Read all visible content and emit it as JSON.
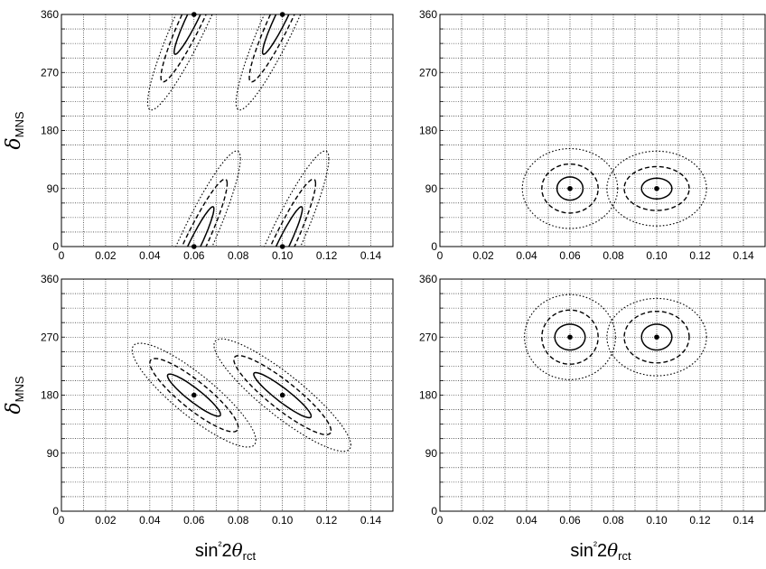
{
  "chart_data": [
    {
      "type": "contour",
      "panel": "top-left",
      "xlim": [
        0,
        0.15
      ],
      "ylim": [
        0,
        360
      ],
      "xticks": [
        "0",
        "0.02",
        "0.04",
        "0.06",
        "0.08",
        "0.10",
        "0.12",
        "0.14"
      ],
      "yticks": [
        "0",
        "90",
        "180",
        "270",
        "360"
      ],
      "ylabel": "δMNS",
      "xlabel": "",
      "grid": true,
      "true_points": [
        {
          "x": 0.06,
          "y": 360
        },
        {
          "x": 0.1,
          "y": 360
        },
        {
          "x": 0.06,
          "y": 0
        },
        {
          "x": 0.1,
          "y": 0
        }
      ],
      "contours": [
        {
          "cx": 0.06,
          "cy": 0,
          "rx": [
            0.009,
            0.015,
            0.021
          ],
          "ry": [
            20,
            38,
            58
          ],
          "slope": 6500
        },
        {
          "cx": 0.1,
          "cy": 0,
          "rx": [
            0.009,
            0.015,
            0.021
          ],
          "ry": [
            20,
            38,
            58
          ],
          "slope": 6500
        },
        {
          "cx": 0.06,
          "cy": 360,
          "rx": [
            0.009,
            0.015,
            0.021
          ],
          "ry": [
            20,
            38,
            58
          ],
          "slope": 6500
        },
        {
          "cx": 0.1,
          "cy": 360,
          "rx": [
            0.009,
            0.015,
            0.021
          ],
          "ry": [
            20,
            38,
            58
          ],
          "slope": 6500
        }
      ]
    },
    {
      "type": "contour",
      "panel": "top-right",
      "xlim": [
        0,
        0.15
      ],
      "ylim": [
        0,
        360
      ],
      "xticks": [
        "0",
        "0.02",
        "0.04",
        "0.06",
        "0.08",
        "0.10",
        "0.12",
        "0.14"
      ],
      "yticks": [
        "0",
        "90",
        "180",
        "270",
        "360"
      ],
      "ylabel": "",
      "xlabel": "",
      "grid": true,
      "true_points": [
        {
          "x": 0.06,
          "y": 90
        },
        {
          "x": 0.1,
          "y": 90
        }
      ],
      "contours": [
        {
          "cx": 0.06,
          "cy": 90,
          "rx": [
            0.006,
            0.013,
            0.022
          ],
          "ry": [
            18,
            38,
            62
          ],
          "slope": 0
        },
        {
          "cx": 0.1,
          "cy": 90,
          "rx": [
            0.007,
            0.015,
            0.023
          ],
          "ry": [
            16,
            34,
            58
          ],
          "slope": 0
        }
      ]
    },
    {
      "type": "contour",
      "panel": "bottom-left",
      "xlim": [
        0,
        0.15
      ],
      "ylim": [
        0,
        360
      ],
      "xticks": [
        "0",
        "0.02",
        "0.04",
        "0.06",
        "0.08",
        "0.10",
        "0.12",
        "0.14"
      ],
      "yticks": [
        "0",
        "90",
        "180",
        "270",
        "360"
      ],
      "ylabel": "δMNS",
      "xlabel": "sin²2θrct",
      "grid": true,
      "true_points": [
        {
          "x": 0.06,
          "y": 180
        },
        {
          "x": 0.1,
          "y": 180
        }
      ],
      "contours": [
        {
          "cx": 0.06,
          "cy": 180,
          "rx": [
            0.012,
            0.02,
            0.028
          ],
          "ry": [
            13,
            27,
            40
          ],
          "slope": -2500
        },
        {
          "cx": 0.1,
          "cy": 180,
          "rx": [
            0.013,
            0.022,
            0.031
          ],
          "ry": [
            13,
            27,
            40
          ],
          "slope": -2500
        }
      ]
    },
    {
      "type": "contour",
      "panel": "bottom-right",
      "xlim": [
        0,
        0.15
      ],
      "ylim": [
        0,
        360
      ],
      "xticks": [
        "0",
        "0.02",
        "0.04",
        "0.06",
        "0.08",
        "0.10",
        "0.12",
        "0.14"
      ],
      "yticks": [
        "0",
        "90",
        "180",
        "270",
        "360"
      ],
      "ylabel": "",
      "xlabel": "sin²2θrct",
      "grid": true,
      "true_points": [
        {
          "x": 0.06,
          "y": 270
        },
        {
          "x": 0.1,
          "y": 270
        }
      ],
      "contours": [
        {
          "cx": 0.06,
          "cy": 270,
          "rx": [
            0.007,
            0.013,
            0.021
          ],
          "ry": [
            20,
            42,
            66
          ],
          "slope": 0
        },
        {
          "cx": 0.1,
          "cy": 270,
          "rx": [
            0.007,
            0.015,
            0.023
          ],
          "ry": [
            20,
            40,
            60
          ],
          "slope": 0
        }
      ]
    }
  ],
  "colors": {
    "line": "#000000",
    "grid": "#000000",
    "background": "#ffffff"
  }
}
